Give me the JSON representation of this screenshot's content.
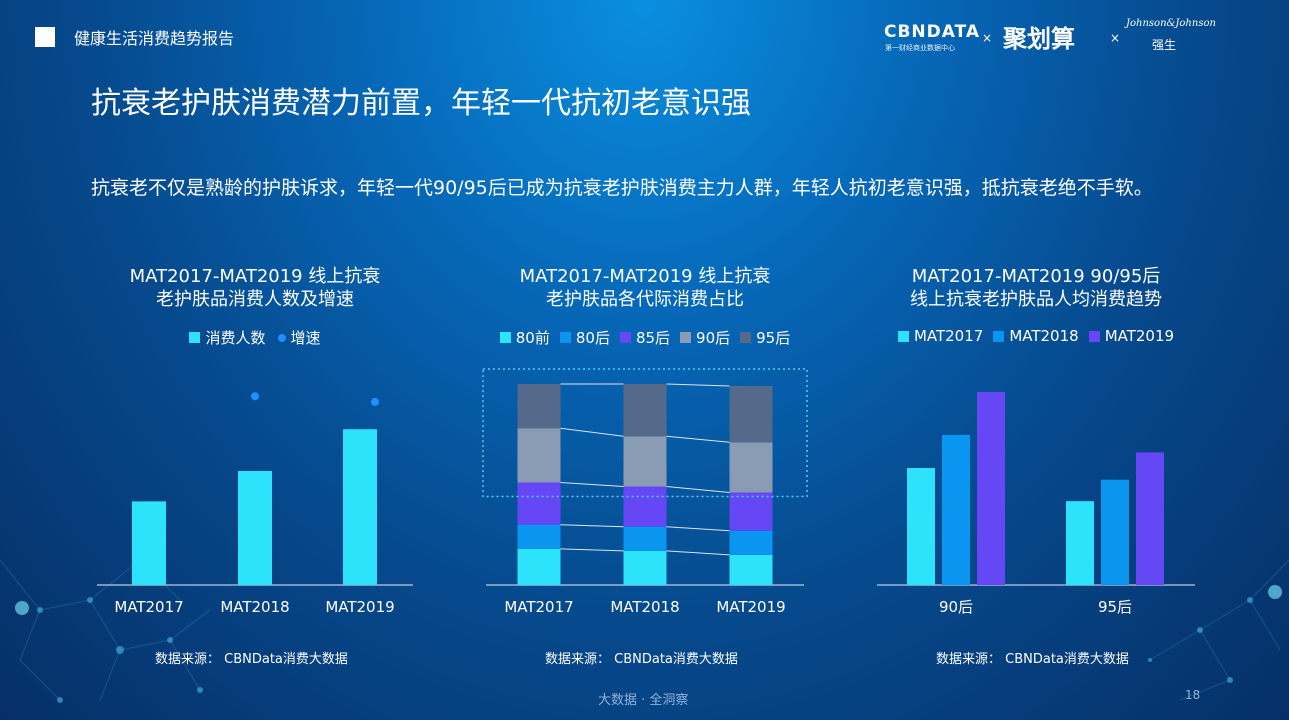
{
  "header": {
    "report_title": "健康生活消费趋势报告",
    "brand_cbn": "CBNDATA",
    "brand_cbn_sub": "第一财经商业数据中心",
    "brand_sep": "×",
    "brand_jhs": "聚划算",
    "brand_jj": "Johnson&Johnson",
    "brand_qs": "强生"
  },
  "headline": "抗衰老护肤消费潜力前置，年轻一代抗初老意识强",
  "description": "抗衰老不仅是熟龄的护肤诉求，年轻一代90/95后已成为抗衰老护肤消费主力人群，年轻人抗初老意识强，抵抗衰老绝不手软。",
  "colors": {
    "cyan": "#2de2fb",
    "blue": "#0a95f0",
    "purple": "#6547f5",
    "gray": "#8a9cb3",
    "slate": "#556a8a",
    "dot": "#1e90ff"
  },
  "chart_data": [
    {
      "type": "bar",
      "title_lines": [
        "MAT2017-MAT2019 线上抗衰",
        "老护肤品消费人数及增速"
      ],
      "legend": [
        "消费人数",
        "增速"
      ],
      "categories": [
        "MAT2017",
        "MAT2018",
        "MAT2019"
      ],
      "series": [
        {
          "name": "消费人数",
          "type": "bar",
          "values": [
            0.44,
            0.6,
            0.82
          ]
        },
        {
          "name": "增速",
          "type": "scatter",
          "values": [
            null,
            0.92,
            0.89
          ]
        }
      ],
      "ylim": [
        0,
        1
      ],
      "source": "数据来源： CBNData消费大数据"
    },
    {
      "type": "bar",
      "stacked": true,
      "title_lines": [
        "MAT2017-MAT2019 线上抗衰",
        "老护肤品各代际消费占比"
      ],
      "legend": [
        "80前",
        "80后",
        "85后",
        "90后",
        "95后"
      ],
      "categories": [
        "MAT2017",
        "MAT2018",
        "MAT2019"
      ],
      "series": [
        {
          "name": "80前",
          "values": [
            18,
            17,
            15
          ]
        },
        {
          "name": "80后",
          "values": [
            12,
            12,
            12
          ]
        },
        {
          "name": "85后",
          "values": [
            21,
            20,
            19
          ]
        },
        {
          "name": "90后",
          "values": [
            27,
            25,
            25
          ]
        },
        {
          "name": "95后",
          "values": [
            22,
            26,
            28
          ]
        }
      ],
      "ylim": [
        0,
        100
      ],
      "highlight": [
        "90后",
        "95后"
      ],
      "source": "数据来源： CBNData消费大数据"
    },
    {
      "type": "bar",
      "title_lines": [
        "MAT2017-MAT2019 90/95后",
        "线上抗衰老护肤品人均消费趋势"
      ],
      "legend": [
        "MAT2017",
        "MAT2018",
        "MAT2019"
      ],
      "categories": [
        "90后",
        "95后"
      ],
      "series": [
        {
          "name": "MAT2017",
          "values": [
            0.6,
            0.43
          ]
        },
        {
          "name": "MAT2018",
          "values": [
            0.77,
            0.54
          ]
        },
        {
          "name": "MAT2019",
          "values": [
            0.99,
            0.68
          ]
        }
      ],
      "ylim": [
        0,
        1
      ],
      "source": "数据来源： CBNData消费大数据"
    }
  ],
  "footer": {
    "tagline": "大数据 · 全洞察",
    "page": "18"
  }
}
